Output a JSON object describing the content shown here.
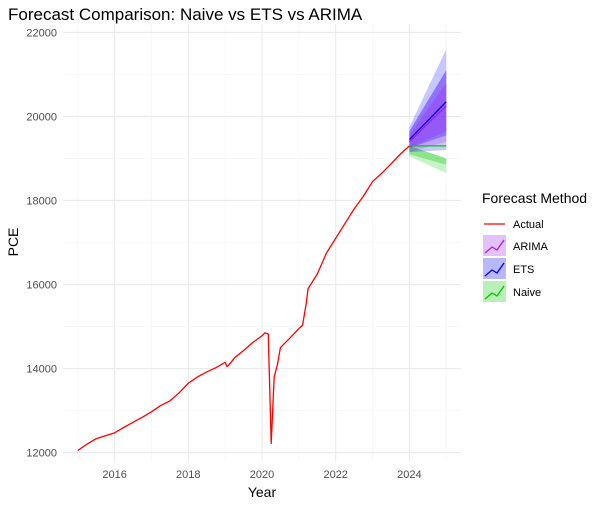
{
  "chart_data": {
    "type": "line",
    "title": "Forecast Comparison: Naive vs ETS vs ARIMA",
    "xlabel": "Year",
    "ylabel": "PCE",
    "xlim": [
      2014.6,
      2025.4
    ],
    "ylim": [
      11800,
      22200
    ],
    "x_ticks": [
      2016,
      2018,
      2020,
      2022,
      2024
    ],
    "y_ticks": [
      12000,
      14000,
      16000,
      18000,
      20000,
      22000
    ],
    "x_tick_labels": [
      "2016",
      "2018",
      "2020",
      "2022",
      "2024"
    ],
    "y_tick_labels": [
      "12000",
      "14000",
      "16000",
      "18000",
      "20000",
      "22000"
    ],
    "grid": true,
    "legend": {
      "title": "Forecast Method",
      "placement": "right",
      "entries": [
        "Actual",
        "ARIMA",
        "ETS",
        "Naive"
      ]
    },
    "colors": {
      "Actual": "#ff0000",
      "ARIMA": "#a020f0",
      "ETS": "#0000ff",
      "Naive": "#00c800"
    },
    "actual": {
      "name": "Actual",
      "x": [
        2015.0,
        2015.25,
        2015.5,
        2015.75,
        2016.0,
        2016.25,
        2016.5,
        2016.75,
        2017.0,
        2017.25,
        2017.5,
        2017.75,
        2018.0,
        2018.25,
        2018.5,
        2018.75,
        2019.0,
        2019.05,
        2019.1,
        2019.25,
        2019.5,
        2019.75,
        2020.0,
        2020.08,
        2020.17,
        2020.25,
        2020.33,
        2020.42,
        2020.5,
        2020.75,
        2021.0,
        2021.1,
        2021.2,
        2021.25,
        2021.5,
        2021.75,
        2022.0,
        2022.25,
        2022.5,
        2022.75,
        2023.0,
        2023.25,
        2023.5,
        2023.75,
        2024.0
      ],
      "y": [
        12050,
        12200,
        12330,
        12400,
        12470,
        12600,
        12720,
        12840,
        12970,
        13120,
        13230,
        13420,
        13650,
        13800,
        13920,
        14020,
        14150,
        14050,
        14080,
        14250,
        14430,
        14620,
        14780,
        14850,
        14820,
        12220,
        13800,
        14100,
        14500,
        14720,
        14950,
        15030,
        15550,
        15900,
        16250,
        16750,
        17100,
        17450,
        17800,
        18100,
        18450,
        18650,
        18870,
        19100,
        19300
      ]
    },
    "forecasts": [
      {
        "name": "Naive",
        "x": [
          2024.0,
          2025.0
        ],
        "mean": [
          19300,
          19300
        ],
        "lo80": [
          19100,
          18850
        ],
        "hi80": [
          19300,
          19000
        ],
        "lo95": [
          19050,
          18650
        ],
        "hi95": [
          19300,
          19000
        ]
      },
      {
        "name": "ETS",
        "x": [
          2024.0,
          2025.0
        ],
        "mean": [
          19450,
          20350
        ],
        "lo80": [
          19250,
          19550
        ],
        "hi80": [
          19650,
          21100
        ],
        "lo95": [
          19150,
          19200
        ],
        "hi95": [
          19750,
          21600
        ]
      },
      {
        "name": "ARIMA",
        "x": [
          2024.0,
          2025.0
        ],
        "mean": [
          19400,
          20250
        ],
        "lo80": [
          19250,
          19650
        ],
        "hi80": [
          19550,
          20800
        ],
        "lo95": [
          19150,
          19400
        ],
        "hi95": [
          19650,
          21100
        ]
      }
    ]
  }
}
